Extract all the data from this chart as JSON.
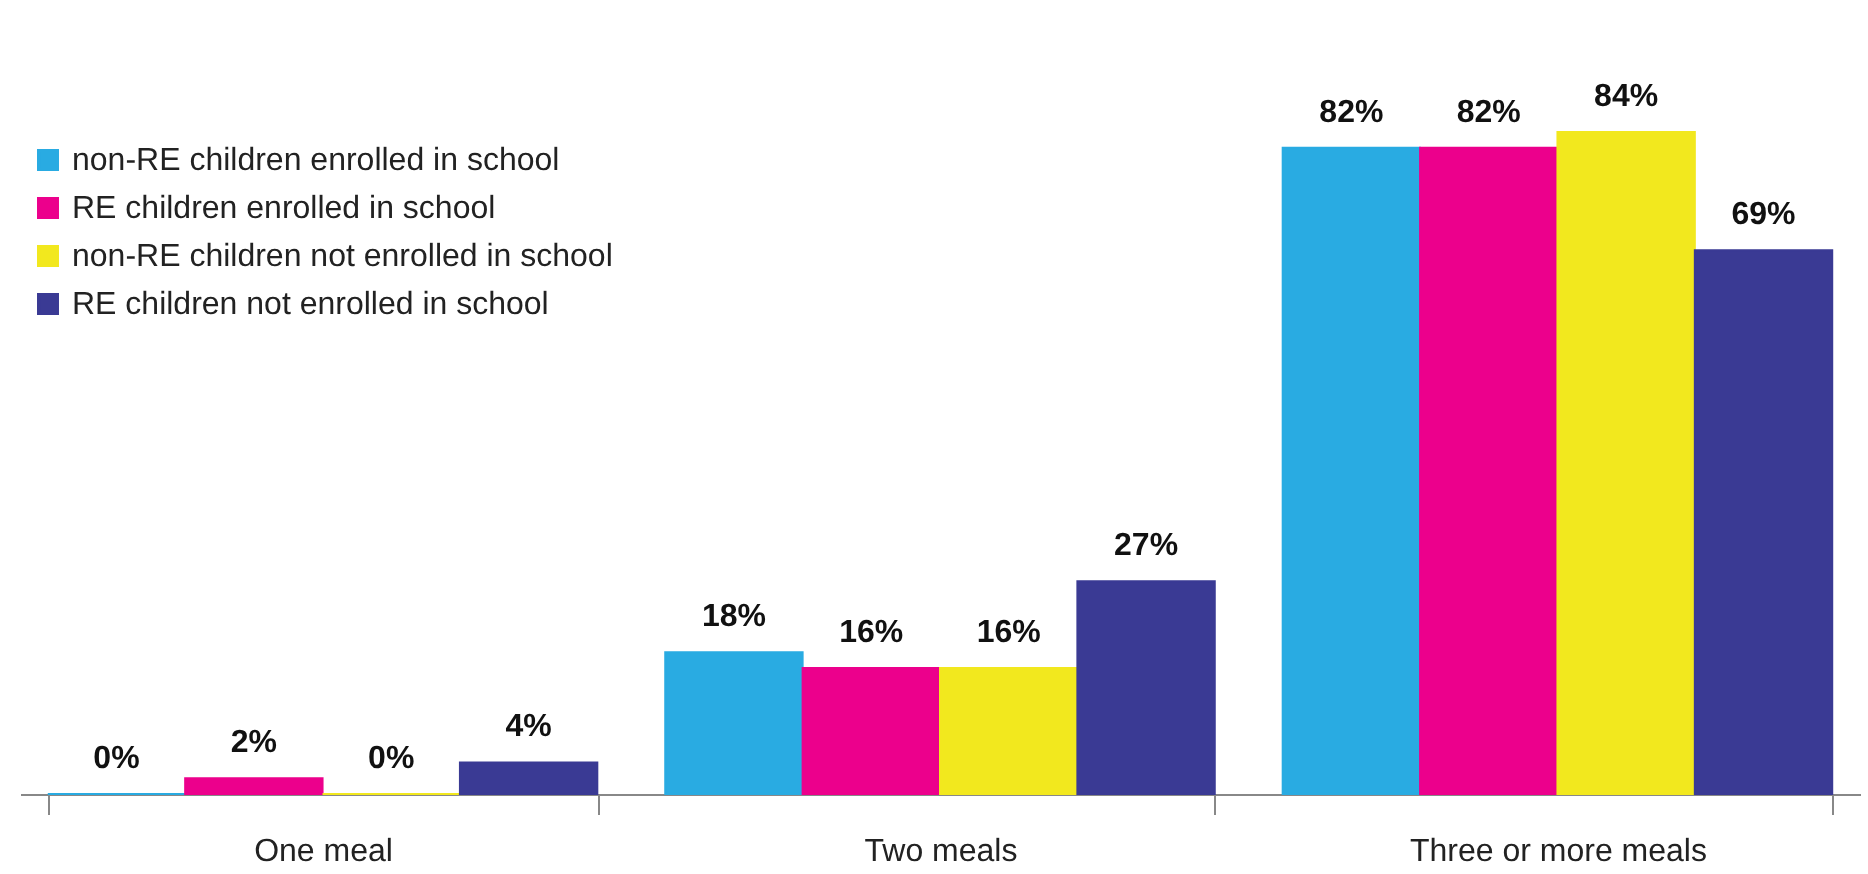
{
  "chart_data": {
    "type": "bar",
    "categories": [
      "One meal",
      "Two meals",
      "Three or more meals"
    ],
    "series": [
      {
        "name": "non-RE children enrolled in school",
        "color": "#29abe2",
        "values": [
          0,
          18,
          82
        ],
        "value_labels": [
          "0%",
          "18%",
          "82%"
        ]
      },
      {
        "name": "RE children enrolled in school",
        "color": "#ec008c",
        "values": [
          2,
          16,
          82
        ],
        "value_labels": [
          "2%",
          "16%",
          "82%"
        ]
      },
      {
        "name": "non-RE children not enrolled in school",
        "color": "#f2e81e",
        "values": [
          0,
          16,
          84
        ],
        "value_labels": [
          "0%",
          "16%",
          "84%"
        ]
      },
      {
        "name": "RE children not enrolled in school",
        "color": "#3a3a94",
        "values": [
          4,
          27,
          69
        ],
        "value_labels": [
          "4%",
          "27%",
          "69%"
        ]
      }
    ],
    "legend": "top left"
  }
}
